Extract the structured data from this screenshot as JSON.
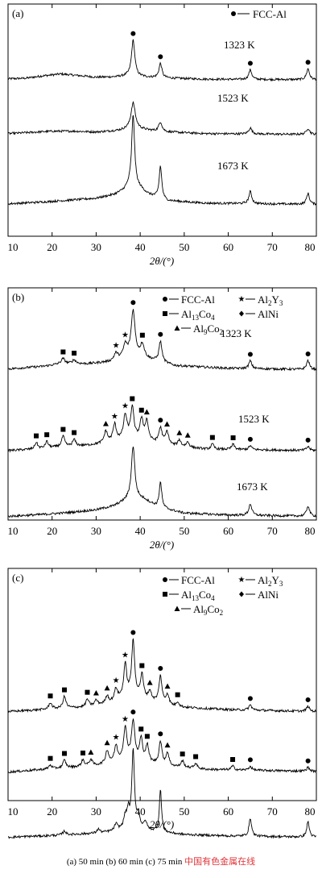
{
  "chart_data": [
    {
      "type": "line",
      "panel_label": "(a)",
      "xlabel": "2θ/(°)",
      "xlim": [
        10,
        80
      ],
      "xticks": [
        "10",
        "20",
        "30",
        "40",
        "50",
        "60",
        "70",
        "80"
      ],
      "legend": [
        "FCC-Al"
      ],
      "series": [
        {
          "name": "1323 K",
          "background": [
            [
              10,
              0.15
            ],
            [
              14,
              0.2
            ],
            [
              18,
              0.4
            ],
            [
              22,
              0.55
            ],
            [
              26,
              0.42
            ],
            [
              30,
              0.28
            ],
            [
              34,
              0.3
            ],
            [
              37,
              0.38
            ],
            [
              45,
              0.22
            ],
            [
              55,
              0.12
            ],
            [
              65,
              0.1
            ],
            [
              80,
              0.08
            ]
          ],
          "peaks": [
            [
              38.4,
              3.0,
              0.45
            ],
            [
              44.6,
              1.2,
              0.4
            ],
            [
              65.0,
              0.8,
              0.4
            ],
            [
              78.1,
              0.9,
              0.4
            ]
          ]
        },
        {
          "name": "1523 K",
          "background": [
            [
              10,
              0.15
            ],
            [
              15,
              0.25
            ],
            [
              20,
              0.35
            ],
            [
              25,
              0.35
            ],
            [
              30,
              0.28
            ],
            [
              35,
              0.4
            ],
            [
              37,
              0.5
            ],
            [
              40,
              0.5
            ],
            [
              45,
              0.3
            ],
            [
              55,
              0.15
            ],
            [
              80,
              0.08
            ]
          ],
          "peaks": [
            [
              38.4,
              2.2,
              0.6
            ],
            [
              44.6,
              0.8,
              0.45
            ],
            [
              65.0,
              0.5,
              0.45
            ],
            [
              78.1,
              0.5,
              0.45
            ]
          ]
        },
        {
          "name": "1673 K",
          "background": [
            [
              10,
              0.15
            ],
            [
              18,
              0.3
            ],
            [
              24,
              0.45
            ],
            [
              30,
              0.6
            ],
            [
              34,
              0.9
            ],
            [
              36,
              1.2
            ],
            [
              37.5,
              1.6
            ],
            [
              40,
              1.4
            ],
            [
              42,
              0.9
            ],
            [
              46,
              0.4
            ],
            [
              55,
              0.2
            ],
            [
              80,
              0.1
            ]
          ],
          "peaks": [
            [
              38.4,
              6.0,
              0.4
            ],
            [
              44.6,
              2.7,
              0.35
            ],
            [
              65.0,
              1.0,
              0.4
            ],
            [
              78.1,
              0.9,
              0.4
            ]
          ]
        }
      ],
      "series_labels": [
        "1323 K",
        "1523 K",
        "1673 K"
      ]
    },
    {
      "type": "line",
      "panel_label": "(b)",
      "xlabel": "2θ/(°)",
      "xlim": [
        10,
        80
      ],
      "xticks": [
        "10",
        "20",
        "30",
        "40",
        "50",
        "60",
        "70",
        "80"
      ],
      "legend": [
        "FCC-Al",
        "Al13Co4",
        "Al9Co2",
        "Al2Y3",
        "AlNi"
      ],
      "series": [
        {
          "name": "1323 K",
          "background": [
            [
              10,
              0.15
            ],
            [
              18,
              0.35
            ],
            [
              22,
              0.55
            ],
            [
              28,
              0.55
            ],
            [
              33,
              0.7
            ],
            [
              36,
              1.0
            ],
            [
              38,
              1.3
            ],
            [
              42,
              0.9
            ],
            [
              48,
              0.4
            ],
            [
              60,
              0.2
            ],
            [
              80,
              0.1
            ]
          ],
          "peaks": [
            [
              22.5,
              0.4,
              0.5
            ],
            [
              25,
              0.3,
              0.5
            ],
            [
              34.5,
              0.5,
              0.5
            ],
            [
              36.6,
              0.9,
              0.5
            ],
            [
              38.4,
              3.4,
              0.5
            ],
            [
              40.5,
              1.0,
              0.5
            ],
            [
              44.6,
              1.6,
              0.4
            ],
            [
              65.0,
              0.6,
              0.4
            ],
            [
              78.1,
              0.7,
              0.4
            ]
          ]
        },
        {
          "name": "1523 K",
          "background": [
            [
              10,
              0.2
            ],
            [
              16,
              0.3
            ],
            [
              22,
              0.5
            ],
            [
              28,
              0.6
            ],
            [
              33,
              0.8
            ],
            [
              37,
              1.1
            ],
            [
              40,
              1.0
            ],
            [
              46,
              0.6
            ],
            [
              55,
              0.3
            ],
            [
              80,
              0.2
            ]
          ],
          "peaks": [
            [
              16.4,
              0.5,
              0.4
            ],
            [
              18.8,
              0.5,
              0.4
            ],
            [
              22.5,
              0.8,
              0.4
            ],
            [
              25,
              0.5,
              0.4
            ],
            [
              32.2,
              0.9,
              0.45
            ],
            [
              34.2,
              1.3,
              0.45
            ],
            [
              36.6,
              1.8,
              0.45
            ],
            [
              38.2,
              2.4,
              0.45
            ],
            [
              40.3,
              1.5,
              0.45
            ],
            [
              41.5,
              1.5,
              0.45
            ],
            [
              44.6,
              1.2,
              0.45
            ],
            [
              46.1,
              1.0,
              0.45
            ],
            [
              48.9,
              0.5,
              0.4
            ],
            [
              50.8,
              0.4,
              0.4
            ],
            [
              56.4,
              0.4,
              0.4
            ],
            [
              61.1,
              0.4,
              0.4
            ],
            [
              65.0,
              0.3,
              0.4
            ],
            [
              78.1,
              0.3,
              0.4
            ]
          ]
        },
        {
          "name": "1673 K",
          "background": [
            [
              10,
              0.1
            ],
            [
              18,
              0.25
            ],
            [
              24,
              0.4
            ],
            [
              30,
              0.6
            ],
            [
              34,
              0.9
            ],
            [
              36.5,
              1.3
            ],
            [
              38,
              1.6
            ],
            [
              41,
              1.4
            ],
            [
              44,
              0.8
            ],
            [
              50,
              0.35
            ],
            [
              60,
              0.2
            ],
            [
              80,
              0.1
            ]
          ],
          "peaks": [
            [
              38.4,
              4.0,
              0.45
            ],
            [
              44.6,
              2.0,
              0.35
            ],
            [
              65.0,
              0.9,
              0.4
            ],
            [
              78.1,
              0.8,
              0.4
            ]
          ]
        }
      ],
      "series_labels": [
        "1323 K",
        "1523 K",
        "1673 K"
      ]
    },
    {
      "type": "line",
      "panel_label": "(c)",
      "xlabel": "2θ/(°)",
      "xlim": [
        10,
        80
      ],
      "xticks": [
        "10",
        "20",
        "30",
        "40",
        "50",
        "60",
        "70",
        "80"
      ],
      "legend": [
        "FCC-Al",
        "Al13Co4",
        "Al9Co2",
        "Al2Y3",
        "AlNi"
      ],
      "series": [
        {
          "name": "",
          "background": [
            [
              10,
              0.15
            ],
            [
              18,
              0.3
            ],
            [
              22,
              0.4
            ],
            [
              28,
              0.5
            ],
            [
              33,
              0.8
            ],
            [
              36,
              1.2
            ],
            [
              38,
              1.4
            ],
            [
              42,
              1.0
            ],
            [
              48,
              0.5
            ],
            [
              60,
              0.3
            ],
            [
              80,
              0.15
            ]
          ],
          "peaks": [
            [
              19.6,
              0.5,
              0.4
            ],
            [
              22.8,
              0.9,
              0.4
            ],
            [
              28,
              0.6,
              0.4
            ],
            [
              30,
              0.4,
              0.4
            ],
            [
              32.5,
              0.6,
              0.4
            ],
            [
              34.5,
              0.9,
              0.4
            ],
            [
              36.6,
              2.5,
              0.4
            ],
            [
              38.4,
              4.2,
              0.4
            ],
            [
              40.4,
              1.8,
              0.4
            ],
            [
              42.2,
              0.7,
              0.4
            ],
            [
              44.6,
              2.1,
              0.4
            ],
            [
              46.2,
              0.8,
              0.4
            ],
            [
              48.5,
              0.4,
              0.4
            ],
            [
              65.0,
              0.4,
              0.4
            ],
            [
              78.1,
              0.4,
              0.4
            ]
          ]
        },
        {
          "name": "",
          "background": [
            [
              10,
              0.15
            ],
            [
              18,
              0.35
            ],
            [
              24,
              0.5
            ],
            [
              30,
              0.65
            ],
            [
              34,
              0.9
            ],
            [
              37,
              1.1
            ],
            [
              41,
              0.9
            ],
            [
              46,
              0.6
            ],
            [
              55,
              0.35
            ],
            [
              80,
              0.2
            ]
          ],
          "peaks": [
            [
              19.6,
              0.3,
              0.4
            ],
            [
              22.8,
              0.6,
              0.4
            ],
            [
              27,
              0.5,
              0.4
            ],
            [
              28.8,
              0.5,
              0.4
            ],
            [
              32.5,
              1.0,
              0.4
            ],
            [
              34.5,
              1.2,
              0.4
            ],
            [
              36.6,
              2.4,
              0.45
            ],
            [
              38.4,
              3.0,
              0.45
            ],
            [
              40.2,
              1.7,
              0.4
            ],
            [
              41.6,
              1.3,
              0.4
            ],
            [
              44.6,
              1.8,
              0.4
            ],
            [
              46.2,
              1.0,
              0.4
            ],
            [
              49.6,
              0.5,
              0.4
            ],
            [
              52.6,
              0.4,
              0.4
            ],
            [
              61,
              0.3,
              0.4
            ],
            [
              65.0,
              0.3,
              0.4
            ],
            [
              78.1,
              0.3,
              0.4
            ]
          ]
        },
        {
          "name": "",
          "background": [
            [
              10,
              0.1
            ],
            [
              18,
              0.2
            ],
            [
              24,
              0.3
            ],
            [
              30,
              0.4
            ],
            [
              34,
              0.55
            ],
            [
              37,
              0.8
            ],
            [
              40,
              0.7
            ],
            [
              44,
              0.5
            ],
            [
              50,
              0.3
            ],
            [
              60,
              0.2
            ],
            [
              80,
              0.1
            ]
          ],
          "peaks": [
            [
              22.8,
              0.3,
              0.4
            ],
            [
              30.5,
              0.3,
              0.4
            ],
            [
              34.5,
              0.5,
              0.4
            ],
            [
              36.6,
              0.8,
              0.4
            ],
            [
              37.3,
              1.2,
              0.35
            ],
            [
              38.4,
              6.0,
              0.35
            ],
            [
              39.6,
              1.0,
              0.4
            ],
            [
              41.2,
              0.6,
              0.4
            ],
            [
              44.6,
              3.3,
              0.3
            ],
            [
              65.0,
              1.4,
              0.35
            ],
            [
              78.1,
              1.2,
              0.35
            ]
          ]
        }
      ],
      "series_labels": []
    }
  ],
  "caption": "(a) 50 min (b) 60 min (c) 75 min",
  "watermark": "中国有色金属在线",
  "colors": {
    "line": "#000000",
    "watermark": "#e0353a"
  }
}
